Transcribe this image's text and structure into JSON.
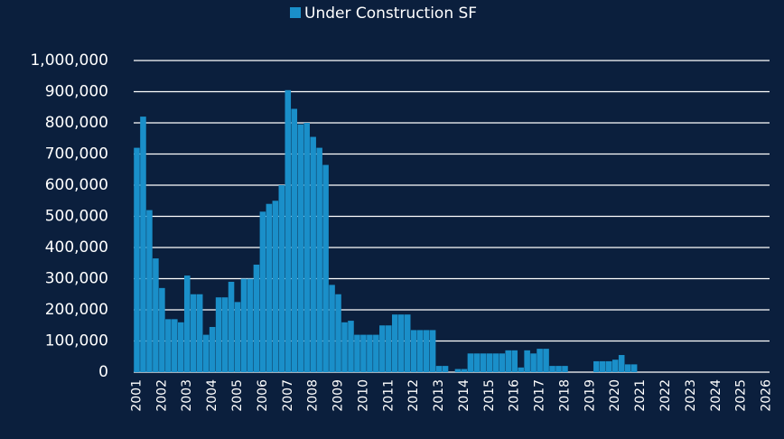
{
  "chart_data": {
    "type": "bar",
    "legend_position": "top",
    "series": [
      {
        "name": "Under Construction SF",
        "color": "#1a8fc9",
        "values": [
          720000,
          820000,
          520000,
          365000,
          270000,
          170000,
          170000,
          160000,
          310000,
          250000,
          250000,
          120000,
          145000,
          240000,
          240000,
          290000,
          225000,
          300000,
          300000,
          345000,
          515000,
          540000,
          550000,
          600000,
          905000,
          845000,
          795000,
          800000,
          755000,
          720000,
          665000,
          280000,
          250000,
          160000,
          165000,
          120000,
          120000,
          120000,
          120000,
          150000,
          150000,
          185000,
          185000,
          185000,
          135000,
          135000,
          135000,
          135000,
          20000,
          20000,
          0,
          10000,
          10000,
          60000,
          60000,
          60000,
          60000,
          60000,
          60000,
          70000,
          70000,
          15000,
          70000,
          60000,
          75000,
          75000,
          20000,
          20000,
          20000,
          0,
          0,
          0,
          0,
          35000,
          35000,
          35000,
          40000,
          55000,
          25000,
          25000,
          0,
          0,
          0,
          0,
          0,
          0,
          0,
          0,
          0,
          0,
          0,
          0,
          0,
          0,
          0,
          0,
          0,
          0,
          0,
          0,
          0
        ]
      }
    ],
    "categories": [
      "2001",
      null,
      null,
      null,
      "2002",
      null,
      null,
      null,
      "2003",
      null,
      null,
      null,
      "2004",
      null,
      null,
      null,
      "2005",
      null,
      null,
      null,
      "2006",
      null,
      null,
      null,
      "2007",
      null,
      null,
      null,
      "2008",
      null,
      null,
      null,
      "2009",
      null,
      null,
      null,
      "2010",
      null,
      null,
      null,
      "2011",
      null,
      null,
      null,
      "2012",
      null,
      null,
      null,
      "2013",
      null,
      null,
      null,
      "2014",
      null,
      null,
      null,
      "2015",
      null,
      null,
      null,
      "2016",
      null,
      null,
      null,
      "2017",
      null,
      null,
      null,
      "2018",
      null,
      null,
      null,
      "2019",
      null,
      null,
      null,
      "2020",
      null,
      null,
      null,
      "2021",
      null,
      null,
      null,
      "2022",
      null,
      null,
      null,
      "2023",
      null,
      null,
      null,
      "2024",
      null,
      null,
      null,
      "2025",
      null,
      null,
      null,
      "2026"
    ],
    "ylim": [
      0,
      1000000
    ],
    "yticks": [
      0,
      {
        "value": 100000,
        "label": "100,000"
      },
      {
        "value": 200000,
        "label": "200,000"
      },
      {
        "value": 300000,
        "label": "300,000"
      },
      {
        "value": 400000,
        "label": "400,000"
      },
      {
        "value": 500000,
        "label": "500,000"
      },
      {
        "value": 600000,
        "label": "600,000"
      },
      {
        "value": 700000,
        "label": "700,000"
      },
      {
        "value": 800000,
        "label": "800,000"
      },
      {
        "value": 900000,
        "label": "900,000"
      },
      {
        "value": 1000000,
        "label": "1,000,000"
      }
    ],
    "grid": true
  }
}
